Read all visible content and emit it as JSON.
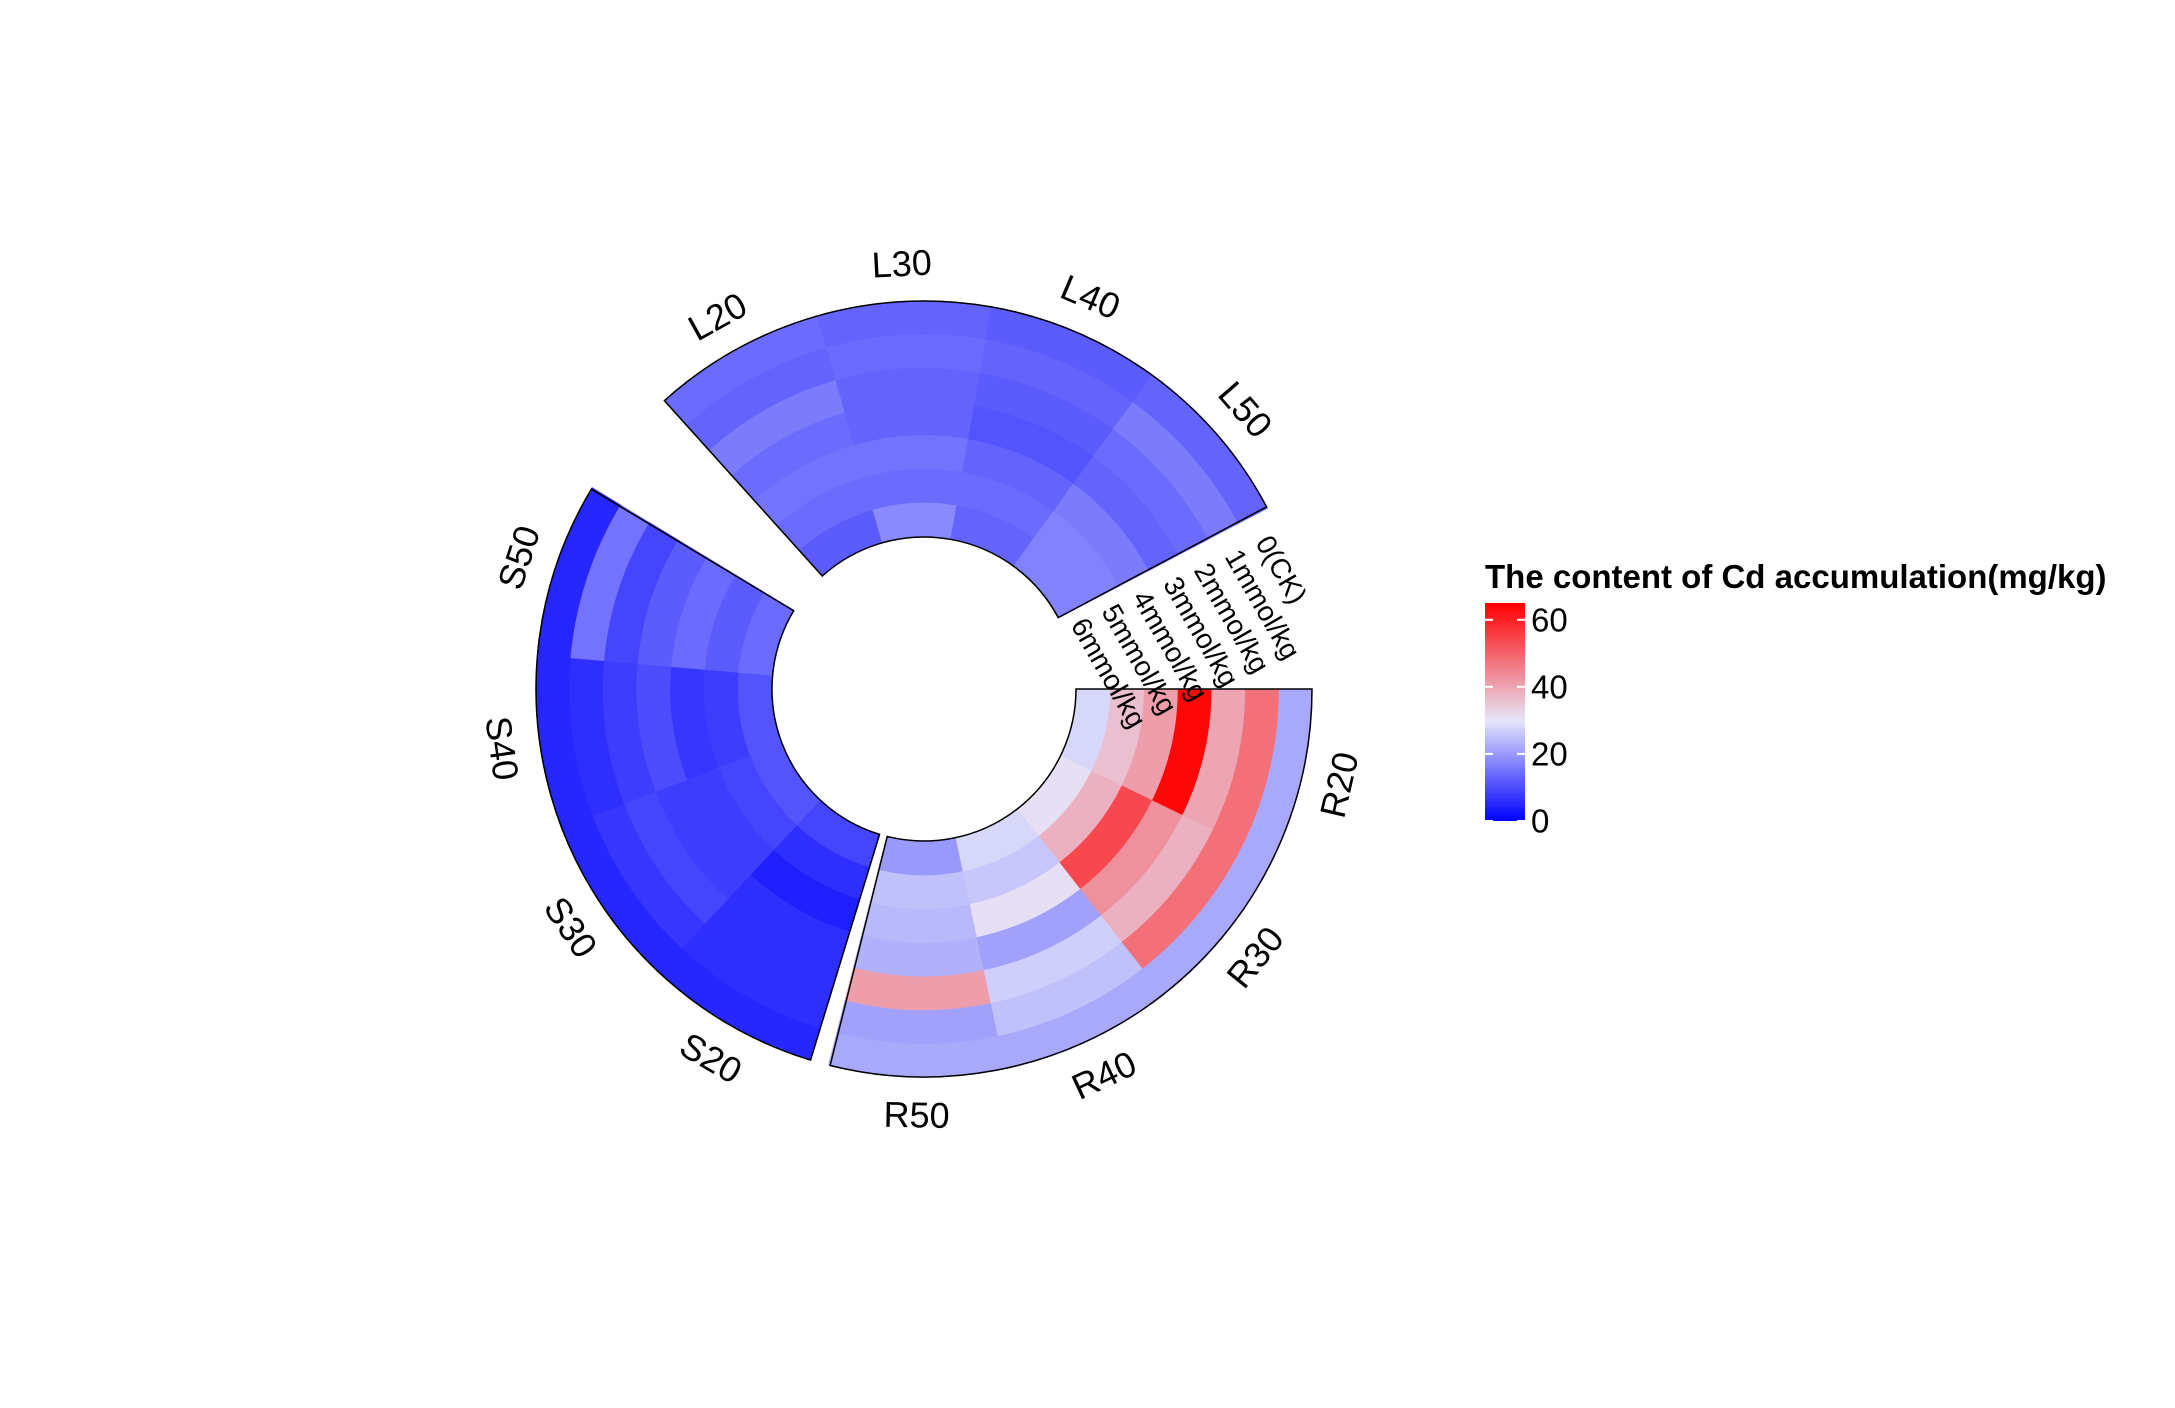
{
  "chart_data": {
    "type": "heatmap",
    "subtype": "circular",
    "legend": {
      "title": "The content of Cd accumulation(mg/kg)",
      "placement": "right",
      "ticks": [
        0,
        20,
        40,
        60
      ],
      "range": [
        0,
        65
      ],
      "colors": {
        "low": "#0000FF",
        "mid": "#E6E6FA",
        "high": "#FF0000",
        "midpoint": 30
      }
    },
    "rings": [
      "0(CK)",
      "1mmol/kg",
      "2mmol/kg",
      "3mmol/kg",
      "4mmol/kg",
      "5mmol/kg",
      "6mmol/kg"
    ],
    "groups": [
      {
        "name": "R",
        "categories": [
          {
            "label": "R20",
            "values": [
              22,
              48,
              40,
              64,
              41,
              36,
              28
            ]
          },
          {
            "label": "R30",
            "values": [
              22,
              48,
              38,
              43,
              54,
              38,
              31
            ]
          },
          {
            "label": "R40",
            "values": [
              22,
              25,
              27,
              21,
              31,
              26,
              28
            ]
          },
          {
            "label": "R50",
            "values": [
              22,
              21,
              41,
              23,
              24,
              25,
              20
            ]
          }
        ]
      },
      {
        "name": "S",
        "categories": [
          {
            "label": "S20",
            "values": [
              5,
              6,
              6,
              6,
              4,
              6,
              9
            ]
          },
          {
            "label": "S30",
            "values": [
              5,
              7,
              9,
              8,
              8,
              9,
              11
            ]
          },
          {
            "label": "S40",
            "values": [
              5,
              6,
              8,
              10,
              7,
              8,
              11
            ]
          },
          {
            "label": "S50",
            "values": [
              5,
              15,
              9,
              12,
              14,
              12,
              14
            ]
          }
        ]
      },
      {
        "name": "L",
        "categories": [
          {
            "label": "L20",
            "values": [
              14,
              13,
              16,
              14,
              15,
              14,
              12
            ]
          },
          {
            "label": "L30",
            "values": [
              13,
              14,
              13,
              13,
              15,
              14,
              18
            ]
          },
          {
            "label": "L40",
            "values": [
              12,
              13,
              12,
              11,
              13,
              14,
              13
            ]
          },
          {
            "label": "L50",
            "values": [
              13,
              16,
              14,
              13,
              16,
              17,
              17
            ]
          }
        ]
      }
    ]
  }
}
